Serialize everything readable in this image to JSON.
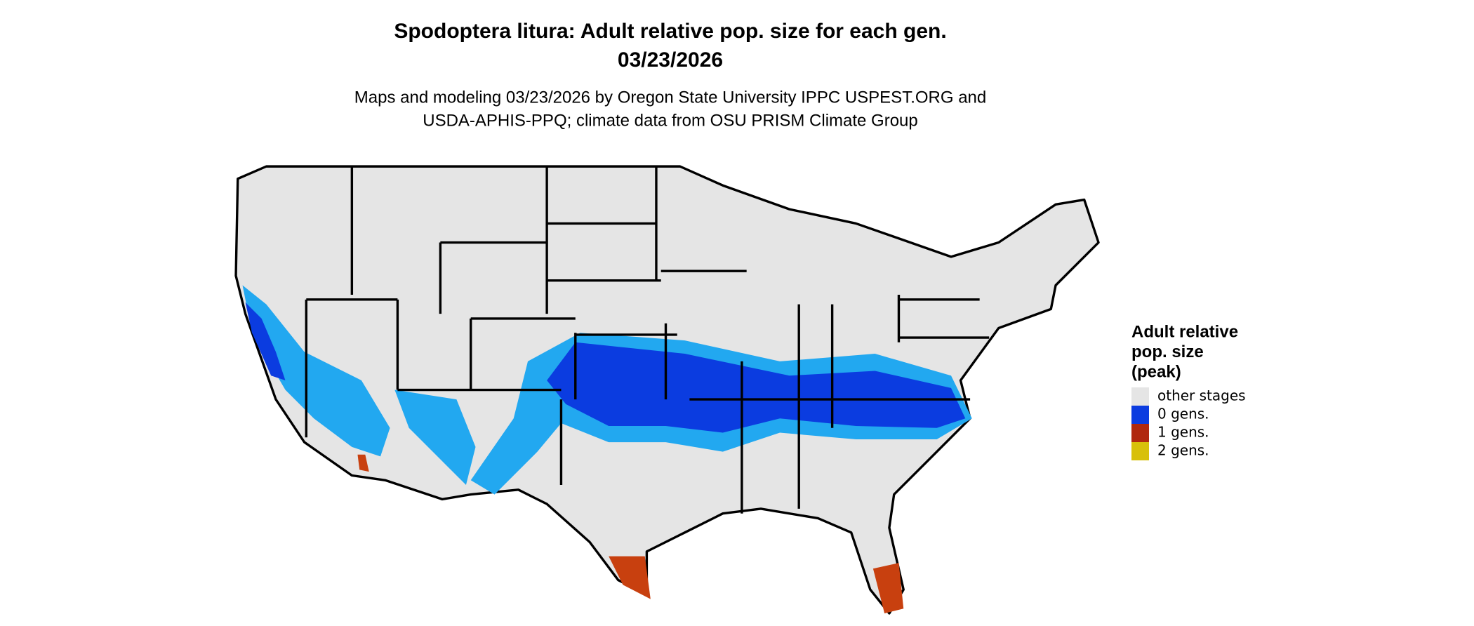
{
  "title": [
    "Spodoptera litura: Adult relative pop. size for each gen.",
    "03/23/2026"
  ],
  "subtitle": [
    "Maps and modeling 03/23/2026 by Oregon State University IPPC USPEST.ORG and",
    "USDA-APHIS-PPQ; climate data from OSU PRISM Climate Group"
  ],
  "legend": {
    "title": [
      "Adult relative",
      "pop. size",
      "(peak)"
    ],
    "items": [
      {
        "label": "other stages",
        "color": "#e5e5e5"
      },
      {
        "label": "0 gens.",
        "color": "#0b3ce0"
      },
      {
        "label": "1 gens.",
        "color": "#b0280f"
      },
      {
        "label": "2 gens.",
        "color": "#d8c00a"
      }
    ]
  }
}
